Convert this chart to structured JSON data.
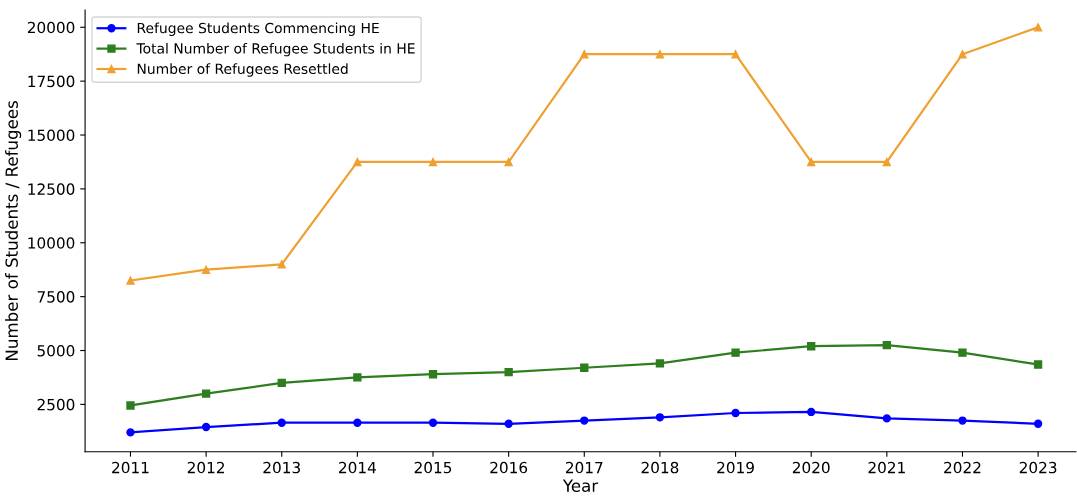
{
  "chart_data": {
    "type": "line",
    "xlabel": "Year",
    "ylabel": "Number of Students / Refugees",
    "x": [
      2011,
      2012,
      2013,
      2014,
      2015,
      2016,
      2017,
      2018,
      2019,
      2020,
      2021,
      2022,
      2023
    ],
    "series": [
      {
        "name": "Refugee Students Commencing HE",
        "color": "#0000ff",
        "marker": "circle",
        "values": [
          1200,
          1450,
          1650,
          1650,
          1650,
          1600,
          1750,
          1900,
          2100,
          2150,
          1850,
          1750,
          1600
        ]
      },
      {
        "name": "Total Number of Refugee Students in HE",
        "color": "#2e7d1f",
        "marker": "square",
        "values": [
          2450,
          3000,
          3500,
          3750,
          3900,
          4000,
          4200,
          4400,
          4900,
          5200,
          5250,
          4900,
          4350
        ]
      },
      {
        "name": "Number of Refugees Resettled",
        "color": "#f0a030",
        "marker": "triangle",
        "values": [
          8250,
          8750,
          9000,
          13750,
          13750,
          13750,
          18750,
          18750,
          18750,
          13750,
          13750,
          18750,
          20000
        ]
      }
    ],
    "xlim": [
      2010.4,
      2023.5
    ],
    "xticks": [
      2011,
      2012,
      2013,
      2014,
      2015,
      2016,
      2017,
      2018,
      2019,
      2020,
      2021,
      2022,
      2023
    ],
    "ylim": [
      300,
      20800
    ],
    "yticks": [
      2500,
      5000,
      7500,
      10000,
      12500,
      15000,
      17500,
      20000
    ],
    "legend": "top left",
    "grid": false,
    "line_style": "solid"
  }
}
